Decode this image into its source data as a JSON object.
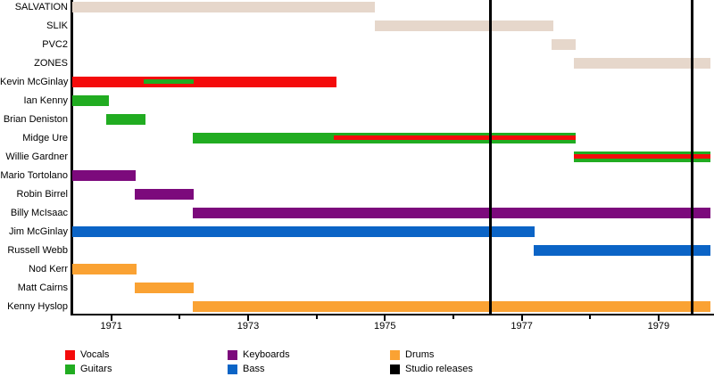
{
  "chart_data": {
    "type": "bar",
    "variant": "timeline-gantt (band membership)",
    "title": "",
    "xlabel": "",
    "ylabel": "",
    "axis": {
      "min": 1970.43,
      "max": 1979.81,
      "ticks": [
        {
          "year": 1971,
          "label": "1971"
        },
        {
          "year": 1972,
          "label": ""
        },
        {
          "year": 1973,
          "label": "1973"
        },
        {
          "year": 1974,
          "label": ""
        },
        {
          "year": 1975,
          "label": "1975"
        },
        {
          "year": 1976,
          "label": ""
        },
        {
          "year": 1977,
          "label": "1977"
        },
        {
          "year": 1978,
          "label": ""
        },
        {
          "year": 1979,
          "label": "1979"
        }
      ]
    },
    "colors": {
      "band": "#E6D7CB",
      "vocals": "#F40B0B",
      "guitars": "#21AC21",
      "keyboards": "#7C0A7C",
      "bass": "#0B64C6",
      "drums": "#FAA233",
      "releases": "#000000"
    },
    "rows": [
      {
        "label": "SALVATION",
        "bars": [
          {
            "start": 1970.43,
            "end": 1974.85,
            "color": "band"
          }
        ]
      },
      {
        "label": "SLIK",
        "bars": [
          {
            "start": 1974.85,
            "end": 1977.46,
            "color": "band"
          }
        ]
      },
      {
        "label": "PVC2",
        "bars": [
          {
            "start": 1977.44,
            "end": 1977.79,
            "color": "band"
          }
        ]
      },
      {
        "label": "ZONES",
        "bars": [
          {
            "start": 1977.76,
            "end": 1979.76,
            "color": "band"
          }
        ]
      },
      {
        "label": "Kevin McGinlay",
        "bars": [
          {
            "start": 1970.43,
            "end": 1974.29,
            "color": "vocals",
            "stripe": {
              "start": 1971.48,
              "end": 1972.2,
              "color": "guitars"
            }
          }
        ]
      },
      {
        "label": "Ian Kenny",
        "bars": [
          {
            "start": 1970.43,
            "end": 1970.96,
            "color": "guitars"
          }
        ]
      },
      {
        "label": "Brian Deniston",
        "bars": [
          {
            "start": 1970.93,
            "end": 1971.5,
            "color": "guitars"
          }
        ]
      },
      {
        "label": "Midge Ure",
        "bars": [
          {
            "start": 1972.19,
            "end": 1977.79,
            "color": "guitars",
            "stripe": {
              "start": 1974.25,
              "end": 1977.79,
              "color": "vocals"
            }
          }
        ]
      },
      {
        "label": "Willie Gardner",
        "bars": [
          {
            "start": 1977.76,
            "end": 1979.76,
            "color": "guitars",
            "stripe": {
              "start": 1977.76,
              "end": 1979.76,
              "color": "vocals"
            }
          }
        ]
      },
      {
        "label": "Mario Tortolano",
        "bars": [
          {
            "start": 1970.43,
            "end": 1971.35,
            "color": "keyboards"
          }
        ]
      },
      {
        "label": "Robin Birrel",
        "bars": [
          {
            "start": 1971.34,
            "end": 1972.2,
            "color": "keyboards"
          }
        ]
      },
      {
        "label": "Billy McIsaac",
        "bars": [
          {
            "start": 1972.19,
            "end": 1979.76,
            "color": "keyboards"
          }
        ]
      },
      {
        "label": "Jim McGinlay",
        "bars": [
          {
            "start": 1970.43,
            "end": 1977.19,
            "color": "bass"
          }
        ]
      },
      {
        "label": "Russell Webb",
        "bars": [
          {
            "start": 1977.18,
            "end": 1979.76,
            "color": "bass"
          }
        ]
      },
      {
        "label": "Nod Kerr",
        "bars": [
          {
            "start": 1970.43,
            "end": 1971.37,
            "color": "drums"
          }
        ]
      },
      {
        "label": "Matt Cairns",
        "bars": [
          {
            "start": 1971.34,
            "end": 1972.2,
            "color": "drums"
          }
        ]
      },
      {
        "label": "Kenny Hyslop",
        "bars": [
          {
            "start": 1972.19,
            "end": 1979.76,
            "color": "drums"
          }
        ]
      }
    ],
    "release_lines": [
      1976.53,
      1979.49
    ],
    "legend_position": "bottom"
  },
  "legend": {
    "items": [
      {
        "label": "Vocals",
        "color": "vocals"
      },
      {
        "label": "Guitars",
        "color": "guitars"
      },
      {
        "label": "Keyboards",
        "color": "keyboards"
      },
      {
        "label": "Bass",
        "color": "bass"
      },
      {
        "label": "Drums",
        "color": "drums"
      },
      {
        "label": "Studio releases",
        "color": "releases"
      }
    ]
  }
}
